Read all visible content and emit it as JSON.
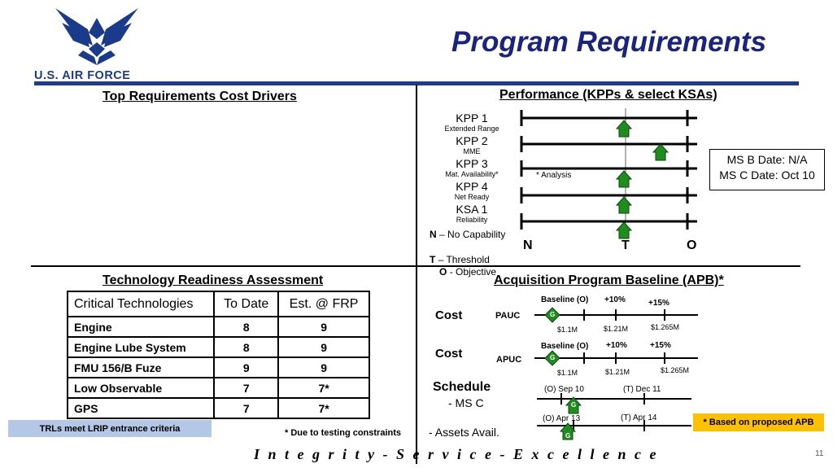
{
  "header": {
    "title": "Program Requirements",
    "brand": "U.S. AIR FORCE",
    "logo_icon": "usaf-wings-logo-icon"
  },
  "cost_drivers": {
    "heading": "Top Requirements Cost Drivers"
  },
  "performance": {
    "heading": "Performance (KPPs & select KSAs)",
    "kpps": [
      {
        "label": "KPP 1",
        "sub": "Extended Range",
        "value": "T"
      },
      {
        "label": "KPP 2",
        "sub": "MME",
        "value": "above-T"
      },
      {
        "label": "KPP 3",
        "sub": "Mat. Availability*",
        "value": "T"
      },
      {
        "label": "KPP 4",
        "sub": "Net Ready",
        "value": "T"
      },
      {
        "label": "KSA 1",
        "sub": "Reliability",
        "value": "T"
      }
    ],
    "analysis_note": "* Analysis",
    "axis": {
      "n": "N",
      "t": "T",
      "o": "O"
    },
    "legend": {
      "n_key": "N",
      "n_text": "– No Capability",
      "t_key": "T",
      "t_text": "– Threshold",
      "o_key": "O",
      "o_text": "- Objective"
    },
    "marker_color": "#1e8c1e"
  },
  "milestones": {
    "ms_b": "MS B Date: N/A",
    "ms_c": "MS C Date: Oct 10"
  },
  "tra": {
    "heading": "Technology Readiness Assessment",
    "columns": [
      "Critical Technologies",
      "To Date",
      "Est. @ FRP"
    ],
    "rows": [
      {
        "name": "Engine",
        "to_date": "8",
        "frp": "9"
      },
      {
        "name": "Engine Lube System",
        "to_date": "8",
        "frp": "9"
      },
      {
        "name": "FMU 156/B Fuze",
        "to_date": "9",
        "frp": "9"
      },
      {
        "name": "Low Observable",
        "to_date": "7",
        "frp": "7*"
      },
      {
        "name": "GPS",
        "to_date": "7",
        "frp": "7*"
      }
    ],
    "trl_note": "TRLs meet LRIP entrance criteria",
    "testing_note": "* Due to testing constraints"
  },
  "apb": {
    "heading": "Acquisition Program Baseline (APB)*",
    "cost1": {
      "label": "Cost",
      "metric": "PAUC",
      "baseline": "Baseline (O)",
      "p10": "+10%",
      "p15": "+15%",
      "v1": "$1.1M",
      "v2": "$1.21M",
      "v3": "$1.265M",
      "status": "G"
    },
    "cost2": {
      "label": "Cost",
      "metric": "APUC",
      "baseline": "Baseline (O)",
      "p10": "+10%",
      "p15": "+15%",
      "v1": "$1.1M",
      "v2": "$1.21M",
      "v3": "$1.265M",
      "status": "G"
    },
    "schedule": {
      "label": "Schedule",
      "ms_c": "- MS C",
      "assets": "- Assets Avail.",
      "o1": "(O) Sep 10",
      "t1": "(T) Dec 11",
      "o2": "(O) Apr 13",
      "t2": "(T) Apr 14",
      "status1": "G",
      "status2": "G"
    },
    "note": "* Based on proposed APB",
    "status_color": "#1e8c1e"
  },
  "footer": {
    "motto": "I n t e g r i t y  -  S e r v i c e  -  E x c e l l e n c e",
    "page": "11"
  }
}
